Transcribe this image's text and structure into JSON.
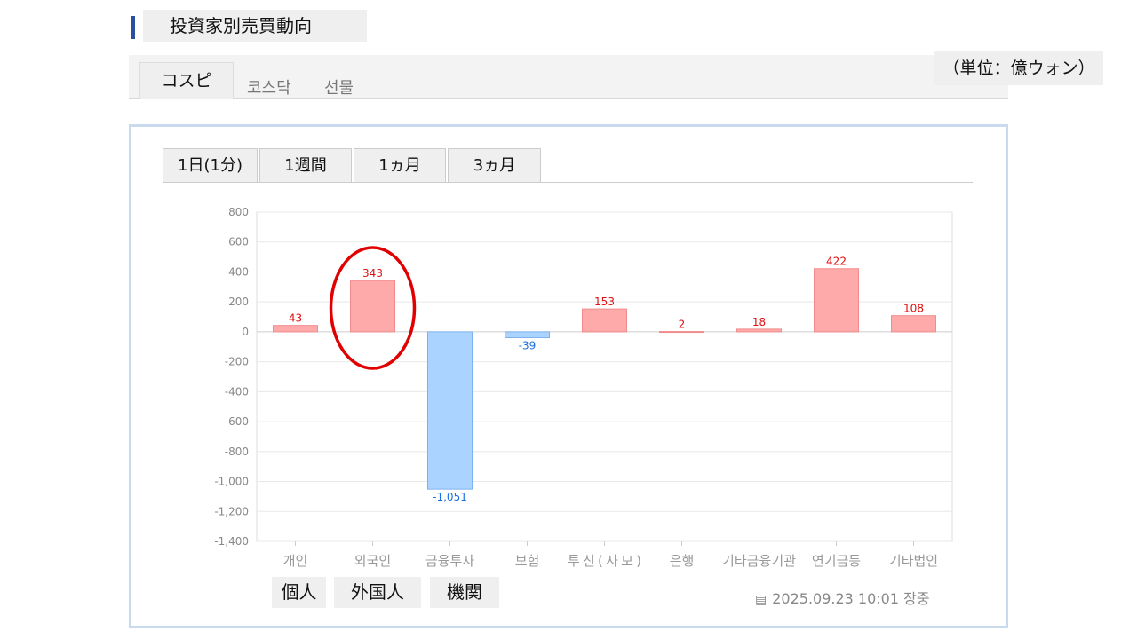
{
  "title": "投資家別売買動向",
  "market_tabs": [
    {
      "label": "コスピ",
      "active": true
    },
    {
      "label": "코스닥"
    },
    {
      "label": "선물"
    }
  ],
  "unit": "（単位：億ウォン）",
  "period_tabs": [
    {
      "label": "1日(1分)",
      "active": true
    },
    {
      "label": "1週間"
    },
    {
      "label": "1ヵ月"
    },
    {
      "label": "3ヵ月"
    }
  ],
  "buttons": [
    "個人",
    "外国人",
    "機関"
  ],
  "timestamp": "2025.09.23 10:01 장중",
  "colors": {
    "positive": "#ffaaaa",
    "negative": "#aad4ff",
    "positive_text": "#e01010",
    "negative_text": "#1a6fe0",
    "highlight": "#e00000"
  },
  "chart_data": {
    "type": "bar",
    "categories": [
      "개인",
      "외국인",
      "금융투자",
      "보험",
      "투신(사모)",
      "은행",
      "기타금융기관",
      "연기금등",
      "기타법인"
    ],
    "values": [
      43,
      343,
      -1051,
      -39,
      153,
      2,
      18,
      422,
      108
    ],
    "value_labels": [
      "43",
      "343",
      "-1,051",
      "-39",
      "153",
      "2",
      "18",
      "422",
      "108"
    ],
    "ylim": [
      -1400,
      800
    ],
    "yticks": [
      800,
      600,
      400,
      200,
      0,
      -200,
      -400,
      -600,
      -800,
      -1000,
      -1200,
      -1400
    ],
    "ytick_labels": [
      "800",
      "600",
      "400",
      "200",
      "0",
      "-200",
      "-400",
      "-600",
      "-800",
      "-1,000",
      "-1,200",
      "-1,400"
    ],
    "grid": true,
    "highlighted_category": "외국인"
  }
}
